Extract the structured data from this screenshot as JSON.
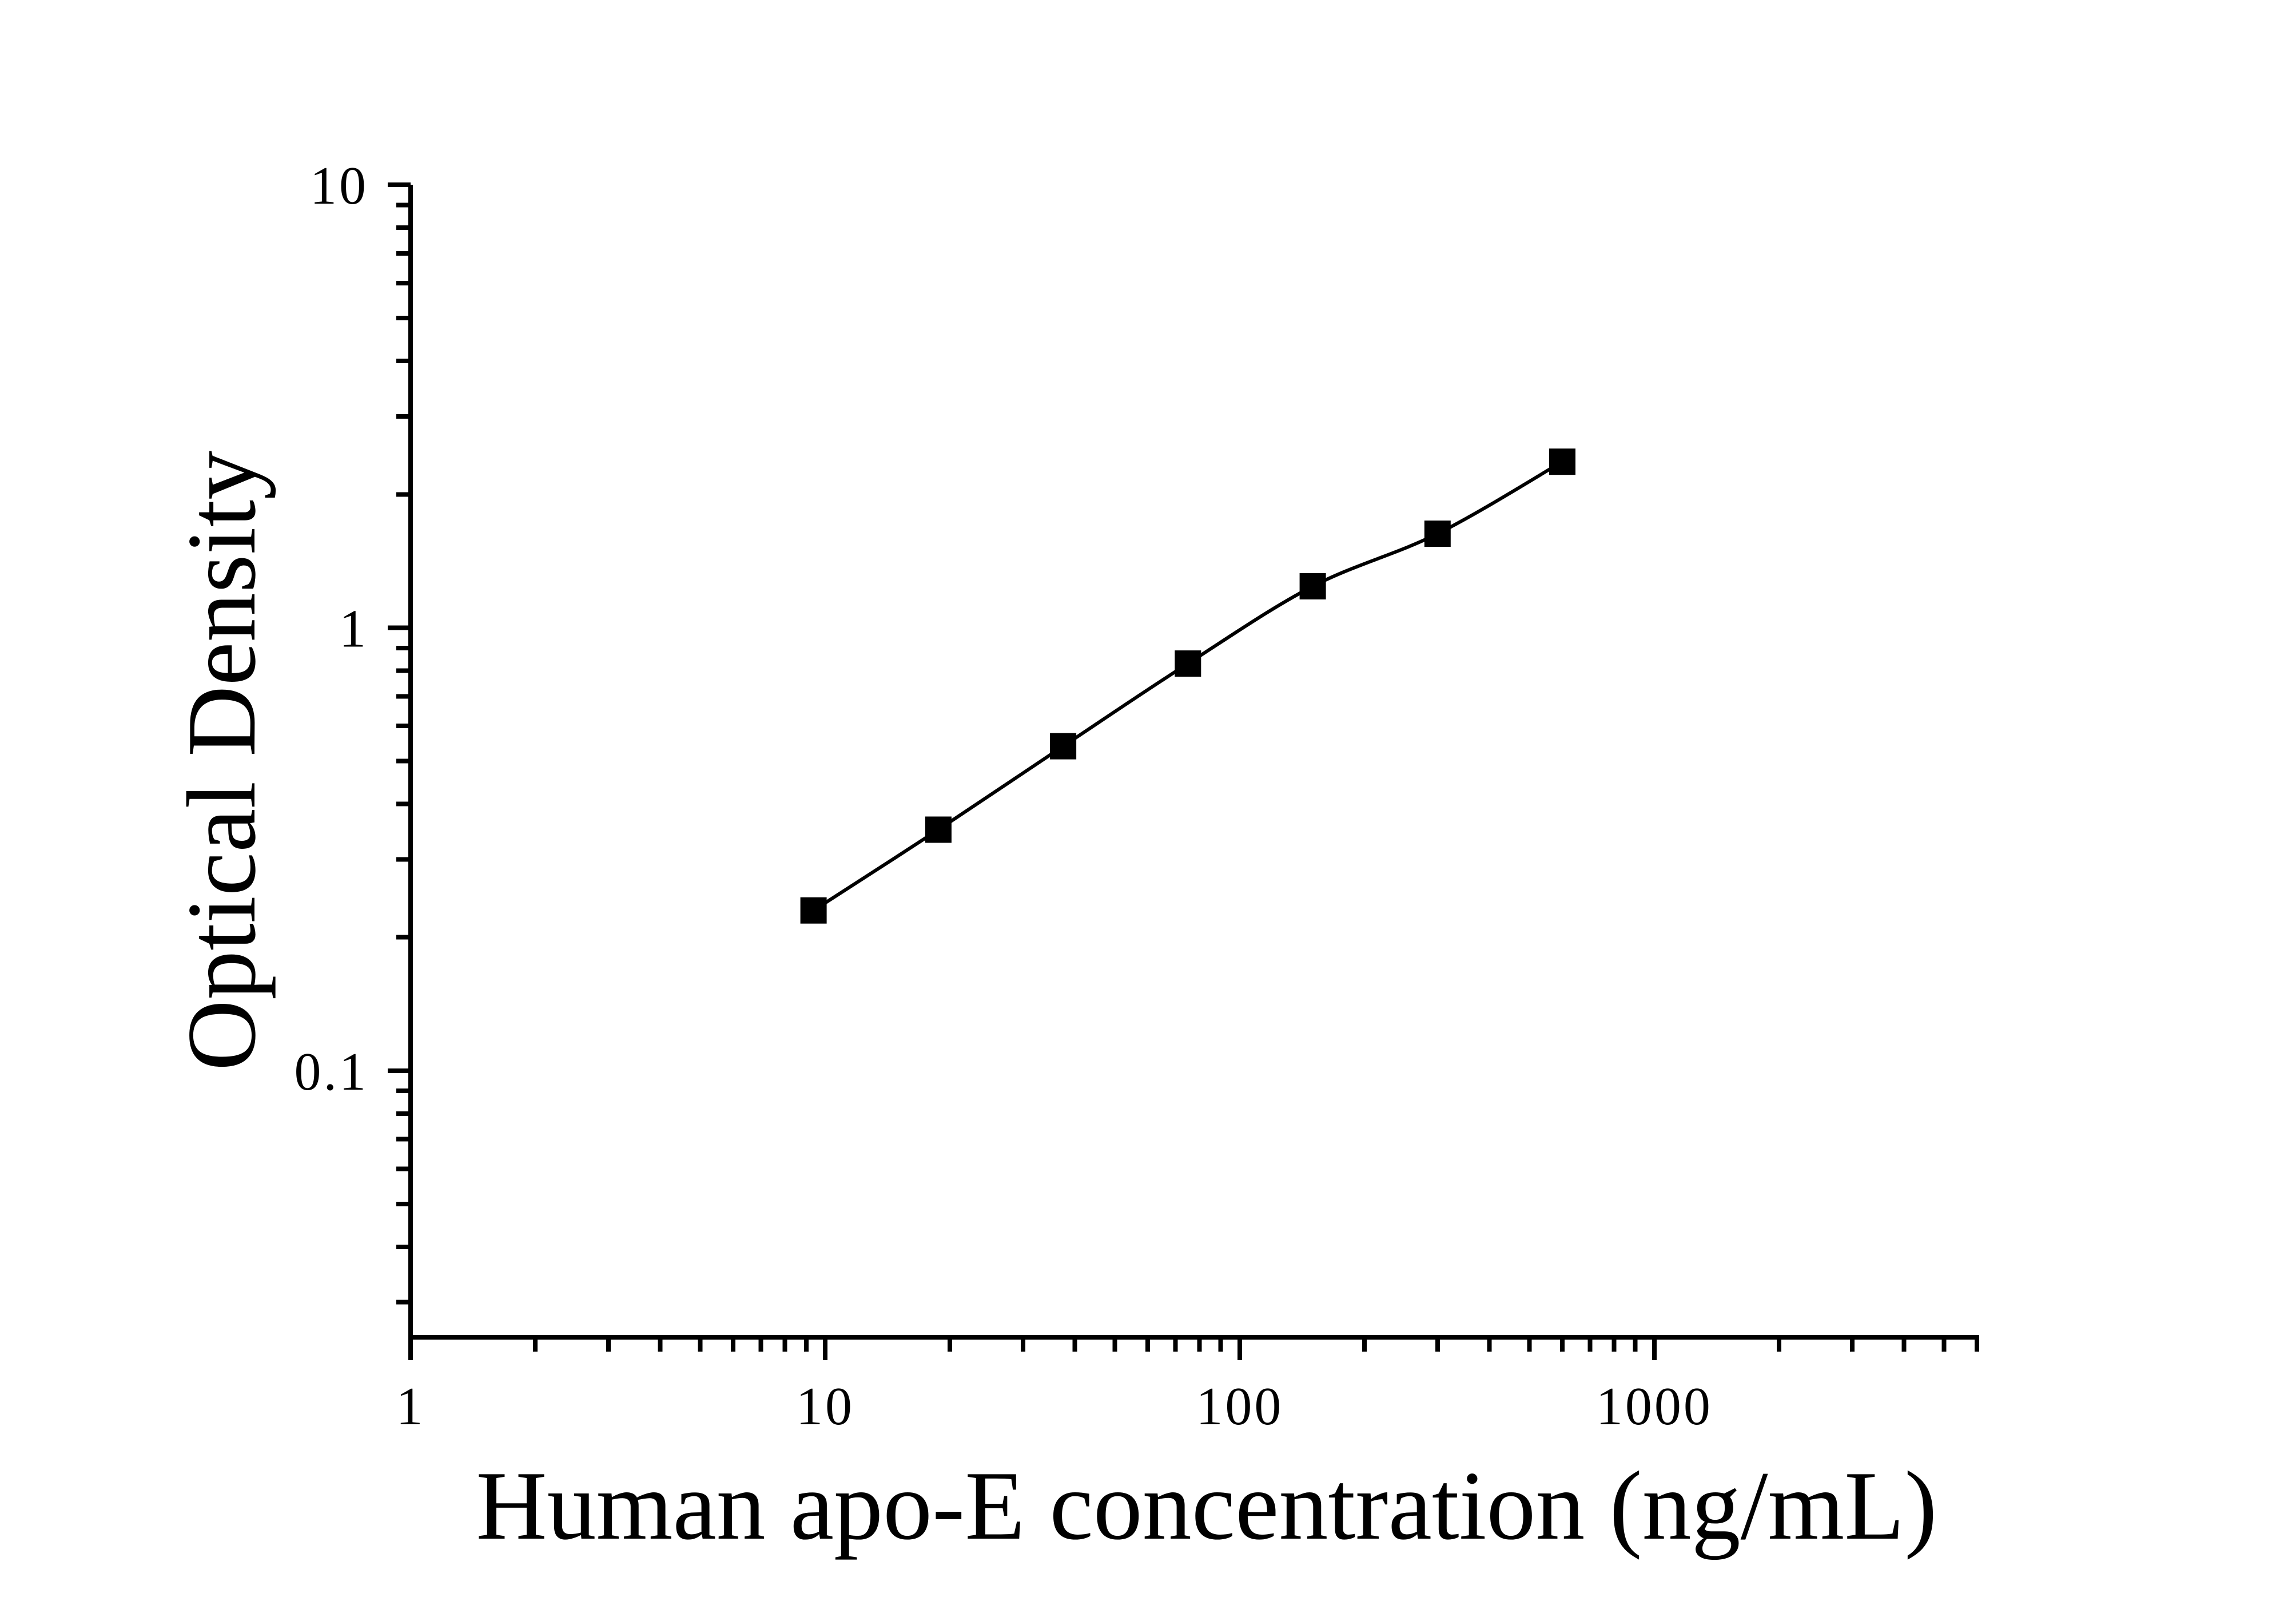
{
  "figure": {
    "background_color": "#ffffff",
    "foreground_color": "#000000"
  },
  "chart_data": {
    "type": "line",
    "subtype": "elisa-standard-curve",
    "title": "",
    "xlabel": "Human apo-E concentration (ng/mL)",
    "ylabel": "Optical Density",
    "x_scale": "log",
    "y_scale": "log",
    "xlim": [
      1,
      6000
    ],
    "ylim": [
      0.025,
      10
    ],
    "grid": false,
    "legend": false,
    "x_ticks": [
      {
        "value": 1,
        "label": "1"
      },
      {
        "value": 10,
        "label": "10"
      },
      {
        "value": 100,
        "label": "100"
      },
      {
        "value": 1000,
        "label": "1000"
      }
    ],
    "y_ticks": [
      {
        "value": 0.1,
        "label": "0.1"
      },
      {
        "value": 1,
        "label": "1"
      },
      {
        "value": 10,
        "label": "10"
      }
    ],
    "series": [
      {
        "marker": "filled-square",
        "line": "smooth",
        "color": "#000000",
        "x": [
          9.375,
          18.75,
          37.5,
          75,
          150,
          300,
          600
        ],
        "y": [
          0.23,
          0.35,
          0.54,
          0.83,
          1.24,
          1.63,
          2.37
        ]
      }
    ]
  }
}
